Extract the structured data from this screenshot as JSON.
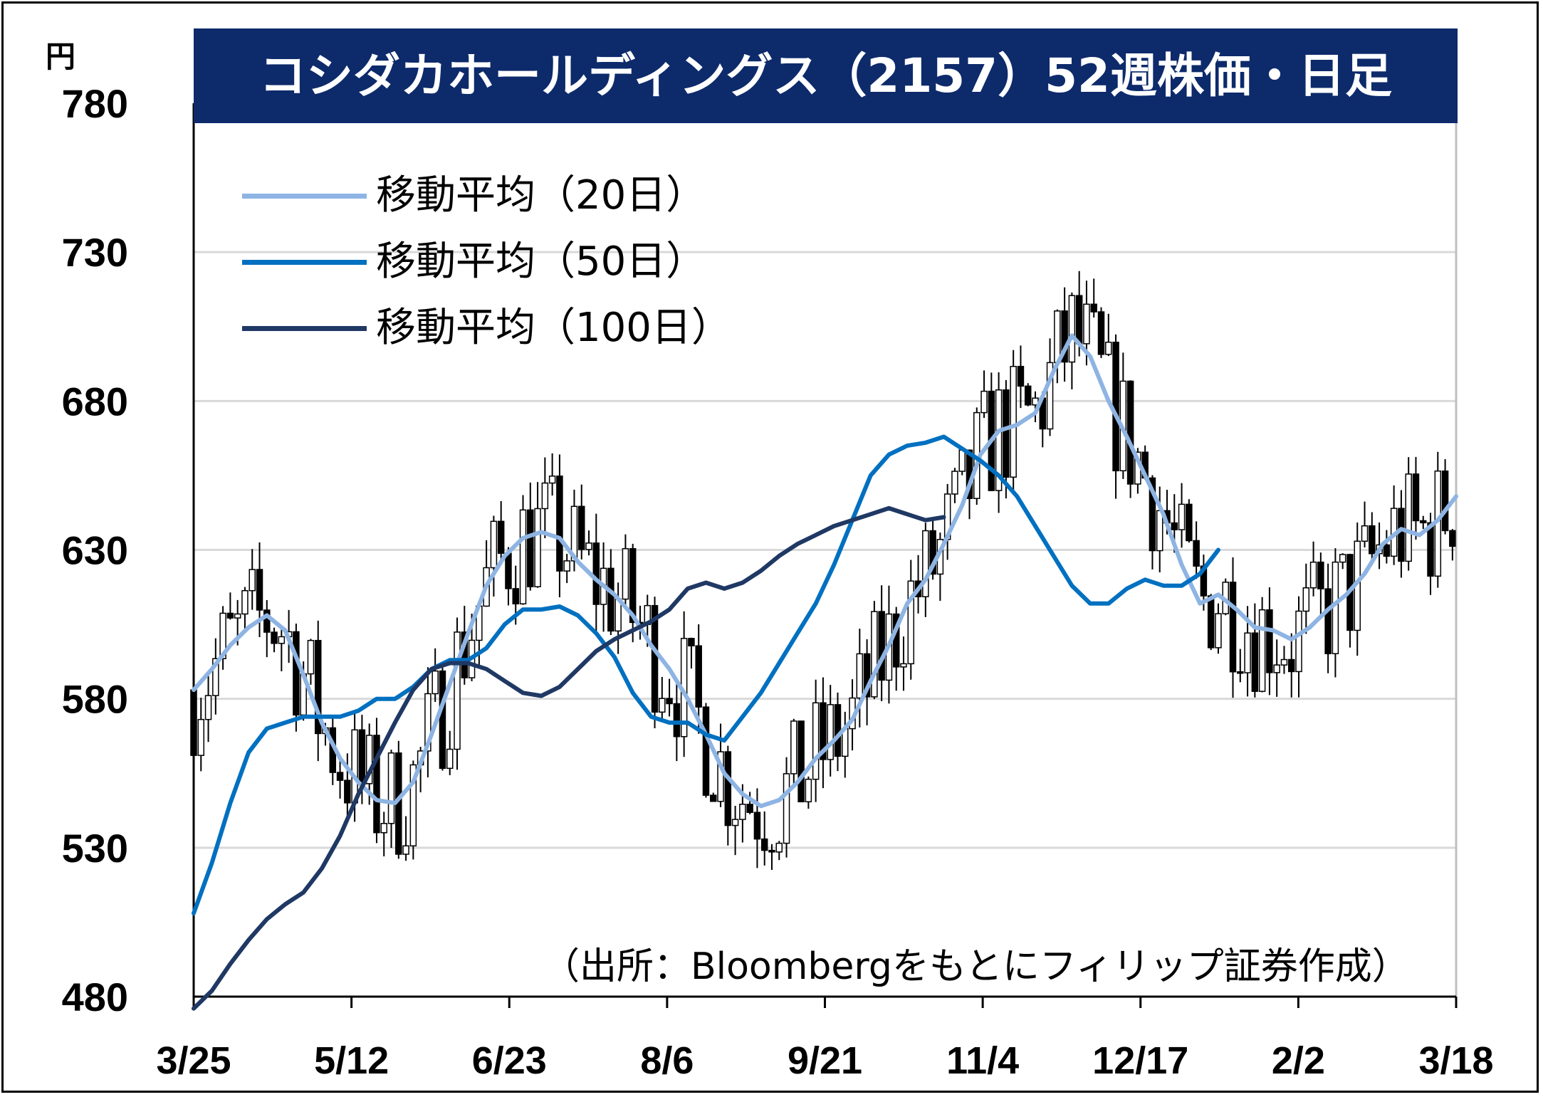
{
  "title": "コシダカホールディングス（2157）52週株価・日足",
  "unit": "円",
  "source": "（出所：Bloombergをもとにフィリップ証券作成）",
  "colors": {
    "title_bg": "#0d2a6b",
    "ma20": "#8eb4e3",
    "ma50": "#0070c0",
    "ma100": "#1f3864",
    "candle": "#000000",
    "grid": "#d9d9d9"
  },
  "chart_data": {
    "type": "candlestick",
    "yaxis": {
      "min": 480,
      "max": 780,
      "ticks": [
        780,
        730,
        680,
        630,
        580,
        530,
        480
      ]
    },
    "xaxis": {
      "ticks": [
        "3/25",
        "5/12",
        "6/23",
        "8/6",
        "9/21",
        "11/4",
        "12/17",
        "2/2",
        "3/18"
      ]
    },
    "legend": [
      {
        "key": "ma20",
        "label": "移動平均（20日）"
      },
      {
        "key": "ma50",
        "label": "移動平均（50日）"
      },
      {
        "key": "ma100",
        "label": "移動平均（100日）"
      }
    ],
    "series": [
      {
        "key": "ma20",
        "name": "移動平均（20日）",
        "points": [
          [
            0,
            583
          ],
          [
            5,
            590
          ],
          [
            10,
            598
          ],
          [
            15,
            604
          ],
          [
            20,
            608
          ],
          [
            25,
            603
          ],
          [
            30,
            588
          ],
          [
            35,
            572
          ],
          [
            40,
            560
          ],
          [
            45,
            552
          ],
          [
            50,
            546
          ],
          [
            55,
            545
          ],
          [
            60,
            552
          ],
          [
            65,
            568
          ],
          [
            70,
            585
          ],
          [
            75,
            602
          ],
          [
            80,
            618
          ],
          [
            85,
            628
          ],
          [
            90,
            634
          ],
          [
            95,
            636
          ],
          [
            100,
            634
          ],
          [
            105,
            626
          ],
          [
            110,
            620
          ],
          [
            115,
            615
          ],
          [
            120,
            608
          ],
          [
            125,
            598
          ],
          [
            130,
            590
          ],
          [
            135,
            580
          ],
          [
            140,
            568
          ],
          [
            145,
            555
          ],
          [
            150,
            548
          ],
          [
            155,
            544
          ],
          [
            160,
            546
          ],
          [
            165,
            552
          ],
          [
            170,
            560
          ],
          [
            175,
            566
          ],
          [
            180,
            573
          ],
          [
            185,
            586
          ],
          [
            190,
            598
          ],
          [
            195,
            612
          ],
          [
            200,
            620
          ],
          [
            205,
            632
          ],
          [
            210,
            645
          ],
          [
            215,
            662
          ],
          [
            220,
            670
          ],
          [
            225,
            672
          ],
          [
            230,
            676
          ],
          [
            235,
            690
          ],
          [
            240,
            702
          ],
          [
            245,
            695
          ],
          [
            250,
            680
          ],
          [
            255,
            668
          ],
          [
            260,
            655
          ],
          [
            265,
            642
          ],
          [
            270,
            625
          ],
          [
            275,
            612
          ],
          [
            280,
            615
          ],
          [
            285,
            610
          ],
          [
            290,
            604
          ],
          [
            295,
            603
          ],
          [
            300,
            600
          ],
          [
            305,
            604
          ],
          [
            310,
            610
          ],
          [
            315,
            615
          ],
          [
            320,
            622
          ],
          [
            325,
            632
          ],
          [
            330,
            637
          ],
          [
            335,
            635
          ],
          [
            340,
            640
          ],
          [
            345,
            648
          ]
        ]
      },
      {
        "key": "ma50",
        "name": "移動平均（50日）",
        "points": [
          [
            0,
            508
          ],
          [
            5,
            525
          ],
          [
            10,
            545
          ],
          [
            15,
            562
          ],
          [
            20,
            570
          ],
          [
            25,
            572
          ],
          [
            30,
            574
          ],
          [
            35,
            574
          ],
          [
            40,
            574
          ],
          [
            45,
            576
          ],
          [
            50,
            580
          ],
          [
            55,
            580
          ],
          [
            60,
            584
          ],
          [
            65,
            590
          ],
          [
            70,
            593
          ],
          [
            75,
            593
          ],
          [
            80,
            597
          ],
          [
            85,
            605
          ],
          [
            90,
            610
          ],
          [
            95,
            610
          ],
          [
            100,
            611
          ],
          [
            105,
            608
          ],
          [
            110,
            602
          ],
          [
            115,
            594
          ],
          [
            120,
            582
          ],
          [
            125,
            574
          ],
          [
            130,
            572
          ],
          [
            135,
            572
          ],
          [
            140,
            568
          ],
          [
            145,
            566
          ],
          [
            150,
            574
          ],
          [
            155,
            582
          ],
          [
            160,
            592
          ],
          [
            165,
            602
          ],
          [
            170,
            612
          ],
          [
            175,
            625
          ],
          [
            180,
            640
          ],
          [
            185,
            655
          ],
          [
            190,
            662
          ],
          [
            195,
            665
          ],
          [
            200,
            666
          ],
          [
            205,
            668
          ],
          [
            210,
            664
          ],
          [
            215,
            660
          ],
          [
            220,
            655
          ],
          [
            225,
            648
          ],
          [
            230,
            638
          ],
          [
            235,
            628
          ],
          [
            240,
            618
          ],
          [
            245,
            612
          ],
          [
            250,
            612
          ],
          [
            255,
            617
          ],
          [
            260,
            620
          ],
          [
            265,
            618
          ],
          [
            270,
            618
          ],
          [
            275,
            622
          ],
          [
            280,
            630
          ]
        ]
      },
      {
        "key": "ma100",
        "name": "移動平均（100日）",
        "points": [
          [
            0,
            476
          ],
          [
            5,
            482
          ],
          [
            10,
            491
          ],
          [
            15,
            499
          ],
          [
            20,
            506
          ],
          [
            25,
            511
          ],
          [
            30,
            515
          ],
          [
            35,
            523
          ],
          [
            40,
            534
          ],
          [
            45,
            548
          ],
          [
            50,
            560
          ],
          [
            55,
            572
          ],
          [
            60,
            583
          ],
          [
            65,
            590
          ],
          [
            70,
            592
          ],
          [
            75,
            592
          ],
          [
            80,
            590
          ],
          [
            85,
            586
          ],
          [
            90,
            582
          ],
          [
            95,
            581
          ],
          [
            100,
            584
          ],
          [
            105,
            590
          ],
          [
            110,
            596
          ],
          [
            115,
            600
          ],
          [
            120,
            603
          ],
          [
            125,
            606
          ],
          [
            130,
            610
          ],
          [
            135,
            617
          ],
          [
            140,
            619
          ],
          [
            145,
            617
          ],
          [
            150,
            619
          ],
          [
            155,
            623
          ],
          [
            160,
            628
          ],
          [
            165,
            632
          ],
          [
            170,
            635
          ],
          [
            175,
            638
          ],
          [
            180,
            640
          ],
          [
            185,
            642
          ],
          [
            190,
            644
          ],
          [
            195,
            642
          ],
          [
            200,
            640
          ],
          [
            205,
            641
          ]
        ]
      }
    ]
  }
}
